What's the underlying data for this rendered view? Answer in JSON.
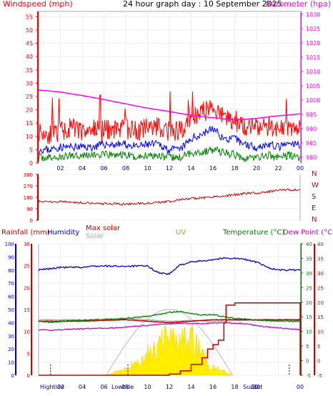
{
  "header": {
    "title": "24 hour graph day : 10 September 2025",
    "windspeed_label": "Windspeed (mph)",
    "barometer_label": "Barometer (hpa)"
  },
  "colors": {
    "wind": "#ff0000",
    "gust": "#0000ff",
    "avg": "#008000",
    "barometer": "#ff00ff",
    "winddir": "#cc0000",
    "humidity": "#0000cc",
    "maxsolar": "#cc0000",
    "solar": "#aaaaaa",
    "uv": "#cc9900",
    "temp": "#008000",
    "dew": "#cc00cc",
    "rain": "#cc0000"
  },
  "chart_data": [
    {
      "type": "line",
      "panel": "wind-barometer",
      "title": "24 hour graph day : 10 September 2025",
      "y_left_label": "Windspeed (mph)",
      "y_right_label": "Barometer (hpa)",
      "y_left_ticks": [
        "0",
        "5",
        "10",
        "15",
        "20",
        "25",
        "30",
        "35",
        "40",
        "45",
        "50",
        "55"
      ],
      "y_right_ticks": [
        "980",
        "985",
        "990",
        "995",
        "1000",
        "1005",
        "1010",
        "1015",
        "1020",
        "1025",
        "1030"
      ],
      "x_ticks": [
        "02",
        "04",
        "06",
        "08",
        "10",
        "12",
        "14",
        "16",
        "18",
        "20",
        "22",
        "00"
      ],
      "ylim_left": [
        0,
        57
      ],
      "ylim_right": [
        978,
        1031
      ],
      "series": [
        {
          "name": "Windspeed (mph)",
          "x": [
            0,
            1,
            2,
            3,
            4,
            5,
            6,
            7,
            8,
            9,
            10,
            11,
            12,
            13,
            14,
            15,
            16,
            17,
            18,
            19,
            20,
            21,
            22,
            23,
            24
          ],
          "values": [
            12,
            11,
            12,
            13,
            12,
            13,
            12,
            13,
            13,
            12,
            13,
            14,
            12,
            12,
            17,
            19,
            21,
            17,
            16,
            14,
            13,
            14,
            13,
            14,
            13
          ]
        },
        {
          "name": "Gust",
          "x": [
            0,
            1,
            2,
            3,
            4,
            5,
            6,
            7,
            8,
            9,
            10,
            11,
            12,
            13,
            14,
            15,
            16,
            17,
            18,
            19,
            20,
            21,
            22,
            23,
            24
          ],
          "values": [
            5,
            5,
            6,
            6,
            6,
            6,
            7,
            7,
            7,
            6,
            7,
            7,
            5,
            5,
            9,
            11,
            13,
            9,
            9,
            7,
            6,
            7,
            6,
            7,
            7
          ]
        },
        {
          "name": "Average",
          "x": [
            0,
            1,
            2,
            3,
            4,
            5,
            6,
            7,
            8,
            9,
            10,
            11,
            12,
            13,
            14,
            15,
            16,
            17,
            18,
            19,
            20,
            21,
            22,
            23,
            24
          ],
          "values": [
            2,
            2,
            2,
            3,
            3,
            3,
            3,
            3,
            3,
            2,
            3,
            3,
            2,
            2,
            4,
            4,
            5,
            4,
            3,
            2,
            2,
            3,
            2,
            3,
            2
          ]
        },
        {
          "name": "Barometer (hpa)",
          "x": [
            0,
            1,
            2,
            3,
            4,
            5,
            6,
            7,
            8,
            9,
            10,
            11,
            12,
            13,
            14,
            15,
            16,
            17,
            18,
            19,
            20,
            21,
            22,
            23,
            24
          ],
          "values": [
            1003.5,
            1003.2,
            1002.8,
            1002.2,
            1001.6,
            1000.9,
            1000.2,
            999.4,
            998.7,
            997.9,
            997.2,
            996.6,
            996.0,
            995.3,
            994.7,
            994.2,
            993.8,
            993.4,
            993.2,
            993.3,
            993.6,
            994.1,
            994.5,
            994.8,
            995.2
          ]
        }
      ]
    },
    {
      "type": "line",
      "panel": "wind-direction",
      "y_left_ticks": [
        "360",
        "270",
        "180",
        "90",
        "0"
      ],
      "y_right_labels": [
        "N",
        "W",
        "S",
        "E",
        "N"
      ],
      "ylim": [
        0,
        360
      ],
      "series": [
        {
          "name": "Wind direction",
          "x": [
            0,
            1,
            2,
            3,
            4,
            5,
            6,
            7,
            8,
            9,
            10,
            11,
            12,
            13,
            14,
            15,
            16,
            17,
            18,
            19,
            20,
            21,
            22,
            23,
            24
          ],
          "values": [
            150,
            145,
            148,
            140,
            138,
            135,
            130,
            128,
            126,
            130,
            135,
            140,
            148,
            160,
            170,
            175,
            185,
            190,
            200,
            210,
            215,
            222,
            235,
            240,
            238
          ]
        }
      ]
    },
    {
      "type": "line",
      "panel": "rain-humidity-solar-temp",
      "legend": [
        "Rainfall (mm)",
        "Humidity",
        "Max solar",
        "Solar",
        "UV",
        "Temperature (°C)",
        "Dew Point (°C)"
      ],
      "y_rain_ticks": [
        "0",
        "5",
        "10",
        "15",
        "20",
        "25",
        "30"
      ],
      "y_humidity_ticks": [
        "0",
        "10",
        "20",
        "30",
        "40",
        "50",
        "60",
        "70",
        "80",
        "90",
        "100"
      ],
      "y_temp_ticks": [
        "-5",
        "0",
        "5",
        "10",
        "15",
        "20",
        "25",
        "30",
        "35",
        "40"
      ],
      "x_ticks": [
        "02",
        "04",
        "06",
        "08",
        "10",
        "12",
        "14",
        "16",
        "18",
        "20",
        "22",
        "00"
      ],
      "x_annotations": [
        "Hightide",
        "02",
        "Lowtide",
        "08",
        "Sunset",
        "20"
      ],
      "ylim_temp": [
        -5,
        40
      ],
      "ylim_rain": [
        0,
        30
      ],
      "series": [
        {
          "name": "Humidity",
          "x": [
            0,
            1,
            2,
            3,
            4,
            5,
            6,
            7,
            8,
            9,
            10,
            11,
            12,
            13,
            14,
            15,
            16,
            17,
            18,
            19,
            20,
            21,
            22,
            23,
            24
          ],
          "values": [
            80,
            81,
            82,
            82,
            82,
            83,
            83,
            83,
            83,
            83,
            83,
            78,
            77,
            84,
            86,
            87,
            88,
            89,
            89,
            88,
            86,
            82,
            80,
            80,
            80
          ]
        },
        {
          "name": "Max solar",
          "x": [
            0,
            2,
            4,
            6,
            8,
            10,
            12,
            14,
            16,
            18,
            20,
            22,
            24
          ],
          "values": [
            13.5,
            13.5,
            13.5,
            13.8,
            14,
            13.5,
            13,
            13.5,
            14,
            14,
            14,
            14,
            14
          ]
        },
        {
          "name": "Solar",
          "x": [
            0,
            2,
            4,
            6,
            8,
            10,
            12,
            14,
            16,
            18,
            20,
            22,
            24
          ],
          "values": [
            14,
            14,
            14,
            14.3,
            14.5,
            14,
            13.5,
            13.8,
            13.5,
            13.7,
            13.8,
            13.5,
            13.7
          ]
        },
        {
          "name": "Temperature (°C)",
          "x": [
            0,
            1,
            2,
            3,
            4,
            5,
            6,
            7,
            8,
            9,
            10,
            11,
            12,
            13,
            14,
            15,
            16,
            17,
            18,
            19,
            20,
            21,
            22,
            23,
            24
          ],
          "values": [
            13.5,
            13.2,
            13.4,
            13.8,
            13.7,
            13.9,
            14,
            14.2,
            14.5,
            14.8,
            15.2,
            15.8,
            16.5,
            16.8,
            16.2,
            15.6,
            15.8,
            15,
            14.5,
            14.2,
            13.8,
            13.7,
            13.6,
            13.5,
            13.5
          ]
        },
        {
          "name": "Dew Point (°C)",
          "x": [
            0,
            1,
            2,
            3,
            4,
            5,
            6,
            7,
            8,
            9,
            10,
            11,
            12,
            13,
            14,
            15,
            16,
            17,
            18,
            19,
            20,
            21,
            22,
            23,
            24
          ],
          "values": [
            10.5,
            10.4,
            10.6,
            10.8,
            10.9,
            11,
            11.1,
            11.2,
            11.5,
            11.8,
            12.1,
            12.4,
            12.6,
            12.8,
            12.7,
            12.7,
            12.9,
            12.9,
            12.8,
            12.6,
            12,
            11.5,
            11.2,
            10.9,
            10.6
          ]
        },
        {
          "name": "Rainfall (mm)",
          "x": [
            0,
            11.5,
            12,
            13,
            14,
            15,
            15.5,
            16,
            16.5,
            17,
            17.2,
            18,
            22,
            23.9,
            24
          ],
          "values": [
            0,
            0,
            0.3,
            1,
            2.5,
            4,
            6,
            7,
            8,
            12,
            16,
            16.5,
            16.5,
            16.5,
            0
          ]
        },
        {
          "name": "Solar radiation",
          "x": [
            6.2,
            8,
            9,
            10,
            11,
            12,
            13,
            14,
            15,
            15.5,
            16,
            16.5,
            17,
            17.8
          ],
          "values": [
            0,
            1.5,
            3,
            5,
            7,
            9,
            7.5,
            9,
            6,
            3,
            2,
            1.5,
            1,
            0
          ]
        }
      ]
    }
  ]
}
